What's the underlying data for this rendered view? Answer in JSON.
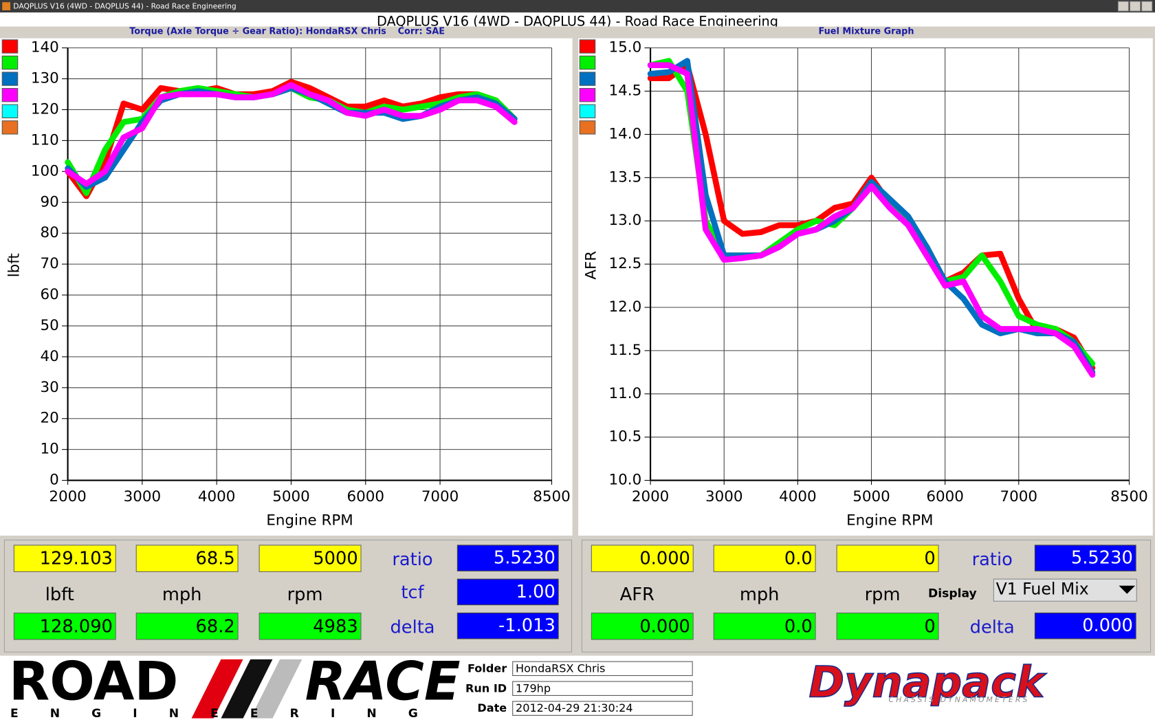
{
  "window": {
    "title": "DAQPLUS V16 (4WD - DAQPLUS 44) - Road Race Engineering",
    "header": "DAQPLUS V16 (4WD - DAQPLUS 44) - Road Race Engineering"
  },
  "chart_data": [
    {
      "type": "line",
      "title": "Torque (Axle Torque ÷ Gear Ratio): HondaRSX Chris",
      "subtitle": "Corr: SAE",
      "x_label": "Engine RPM",
      "y_label": "lbft",
      "x": [
        2000,
        2250,
        2500,
        2750,
        3000,
        3250,
        3500,
        3750,
        4000,
        4250,
        4500,
        4750,
        5000,
        5250,
        5500,
        5750,
        6000,
        6250,
        6500,
        6750,
        7000,
        7250,
        7500,
        7750,
        8000
      ],
      "xlim": [
        2000,
        8500
      ],
      "xticks": [
        2000,
        3000,
        4000,
        5000,
        6000,
        7000,
        8500
      ],
      "ylim": [
        0,
        140
      ],
      "yticks": [
        0,
        10,
        20,
        30,
        40,
        50,
        60,
        70,
        80,
        90,
        100,
        110,
        120,
        130,
        140
      ],
      "grid": true,
      "swatches": [
        "#ff0000",
        "#00ee00",
        "#0070c0",
        "#ff00ff",
        "#00ffff",
        "#e87020"
      ],
      "series": [
        {
          "color": "#ff0000",
          "values": [
            100,
            92,
            103,
            122,
            120,
            127,
            126,
            126,
            127,
            125,
            125,
            126,
            129,
            127,
            124,
            121,
            121,
            123,
            121,
            122,
            124,
            125,
            125,
            123,
            117
          ]
        },
        {
          "color": "#00ee00",
          "values": [
            103,
            93,
            107,
            116,
            117,
            124,
            126,
            127,
            126,
            125,
            124,
            125,
            127,
            124,
            123,
            120,
            119,
            121,
            120,
            121,
            122,
            124,
            125,
            123,
            117
          ]
        },
        {
          "color": "#0070c0",
          "values": [
            101,
            95,
            98,
            107,
            116,
            123,
            125,
            126,
            125,
            124,
            124,
            125,
            127,
            125,
            122,
            119,
            119,
            119,
            117,
            118,
            121,
            123,
            124,
            122,
            117
          ]
        },
        {
          "color": "#ff00ff",
          "values": [
            100,
            96,
            100,
            111,
            114,
            124,
            125,
            125,
            125,
            124,
            124,
            125,
            128,
            125,
            123,
            119,
            118,
            120,
            118,
            118,
            120,
            123,
            123,
            121,
            116
          ]
        }
      ]
    },
    {
      "type": "line",
      "title": "Fuel Mixture Graph",
      "x_label": "Engine RPM",
      "y_label": "AFR",
      "x": [
        2000,
        2250,
        2500,
        2750,
        3000,
        3250,
        3500,
        3750,
        4000,
        4250,
        4500,
        4750,
        5000,
        5250,
        5500,
        5750,
        6000,
        6250,
        6500,
        6750,
        7000,
        7250,
        7500,
        7750,
        8000
      ],
      "xlim": [
        2000,
        8500
      ],
      "xticks": [
        2000,
        3000,
        4000,
        5000,
        6000,
        7000,
        8500
      ],
      "ylim": [
        10,
        15
      ],
      "yticks": [
        {
          "value": 10,
          "label": "10.0"
        },
        10.5,
        {
          "value": 11,
          "label": "11.0"
        },
        11.5,
        {
          "value": 12,
          "label": "12.0"
        },
        12.5,
        {
          "value": 13,
          "label": "13.0"
        },
        13.5,
        {
          "value": 14,
          "label": "14.0"
        },
        14.5,
        {
          "value": 15,
          "label": "15.0"
        }
      ],
      "grid": true,
      "swatches": [
        "#ff0000",
        "#00ee00",
        "#0070c0",
        "#ff00ff",
        "#00ffff",
        "#e87020"
      ],
      "series": [
        {
          "color": "#ff0000",
          "values": [
            14.65,
            14.65,
            14.8,
            14.0,
            13.0,
            12.85,
            12.87,
            12.95,
            12.95,
            13.0,
            13.15,
            13.2,
            13.5,
            13.2,
            12.95,
            12.7,
            12.3,
            12.4,
            12.6,
            12.62,
            12.1,
            11.72,
            11.75,
            11.65,
            11.3
          ]
        },
        {
          "color": "#00ee00",
          "values": [
            14.8,
            14.85,
            14.5,
            13.0,
            12.6,
            12.6,
            12.6,
            12.75,
            12.9,
            13.0,
            12.95,
            13.15,
            13.45,
            13.2,
            12.95,
            12.6,
            12.3,
            12.35,
            12.6,
            12.3,
            11.9,
            11.8,
            11.75,
            11.6,
            11.35
          ]
        },
        {
          "color": "#0070c0",
          "values": [
            14.7,
            14.72,
            14.85,
            13.3,
            12.6,
            12.6,
            12.6,
            12.7,
            12.85,
            12.9,
            13.0,
            13.15,
            13.45,
            13.25,
            13.05,
            12.7,
            12.3,
            12.1,
            11.8,
            11.7,
            11.75,
            11.7,
            11.7,
            11.6,
            11.25
          ]
        },
        {
          "color": "#ff00ff",
          "values": [
            14.8,
            14.8,
            14.7,
            12.9,
            12.55,
            12.57,
            12.6,
            12.7,
            12.85,
            12.9,
            13.05,
            13.15,
            13.4,
            13.15,
            12.95,
            12.6,
            12.25,
            12.3,
            11.9,
            11.75,
            11.75,
            11.75,
            11.7,
            11.55,
            11.22
          ]
        }
      ]
    }
  ],
  "panels": [
    {
      "row1": [
        "129.103",
        "68.5",
        "5000"
      ],
      "units": [
        "lbft",
        "mph",
        "rpm"
      ],
      "row2": [
        "128.090",
        "68.2",
        "4983"
      ],
      "side_labels": [
        "ratio",
        "tcf",
        "delta"
      ],
      "side_values": [
        "5.5230",
        "1.00",
        "-1.013"
      ]
    },
    {
      "row1": [
        "0.000",
        "0.0",
        "0"
      ],
      "units": [
        "AFR",
        "mph",
        "rpm"
      ],
      "row2": [
        "0.000",
        "0.0",
        "0"
      ],
      "side_labels": [
        "ratio",
        "delta"
      ],
      "side_values": [
        "5.5230",
        "0.000"
      ],
      "display_label": "Display",
      "dropdown": "V1 Fuel Mix"
    }
  ],
  "footer": {
    "logo_word1": "ROAD",
    "logo_word2": "RACE",
    "logo_sub": "ENGINEERING",
    "fields": [
      {
        "label": "Folder",
        "value": "HondaRSX Chris"
      },
      {
        "label": "Run ID",
        "value": "179hp"
      },
      {
        "label": "Date",
        "value": "2012-04-29 21:30:24"
      }
    ],
    "brand": "Dynapack",
    "brand_sub": "CHASSIS DYNAMOMETERS"
  }
}
